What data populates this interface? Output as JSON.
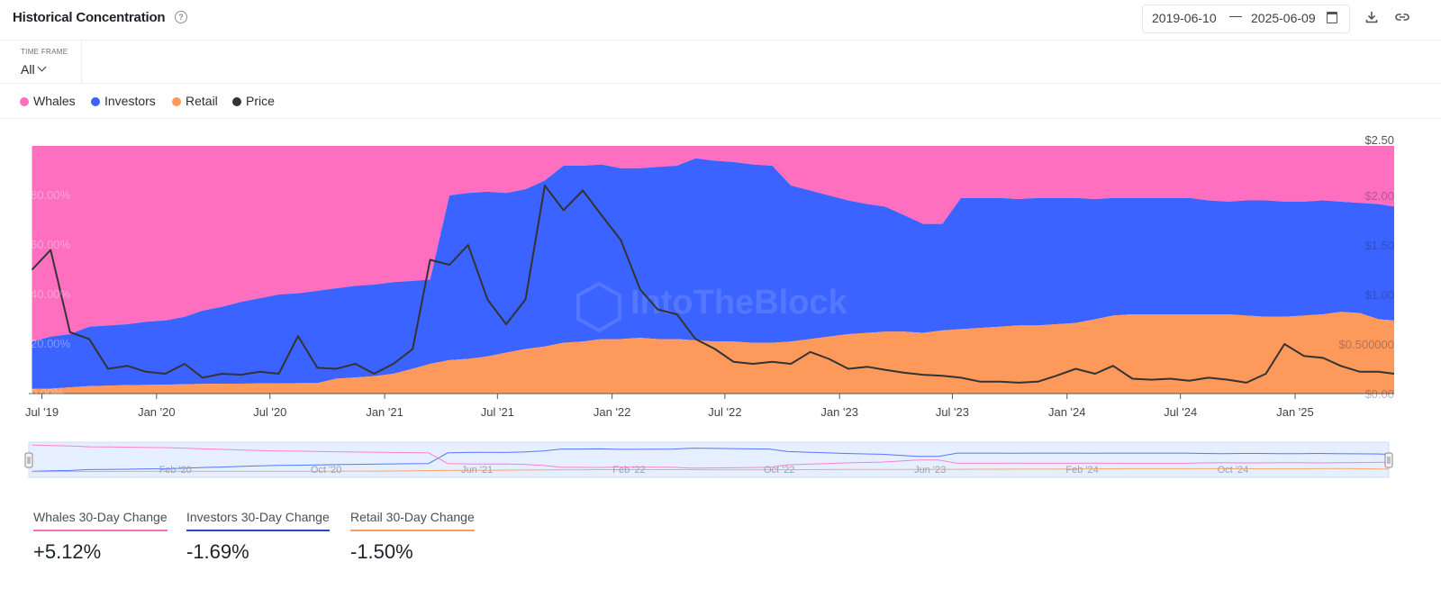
{
  "header": {
    "title": "Historical Concentration",
    "help_icon": "question-circle-icon",
    "date_start": "2019-06-10",
    "date_separator": "—",
    "date_end": "2025-06-09",
    "icons": [
      "calendar-icon",
      "download-icon",
      "link-icon"
    ]
  },
  "timeframe": {
    "label": "TIME FRAME",
    "value": "All"
  },
  "legend": [
    {
      "label": "Whales",
      "color": "#ff6fbf"
    },
    {
      "label": "Investors",
      "color": "#3b63ff"
    },
    {
      "label": "Retail",
      "color": "#fd9a5b"
    },
    {
      "label": "Price",
      "color": "#333333"
    }
  ],
  "chart_data": {
    "type": "area",
    "stacked": true,
    "watermark": "IntoTheBlock",
    "x_ticks": [
      "Jul '19",
      "Jan '20",
      "Jul '20",
      "Jan '21",
      "Jul '21",
      "Jan '22",
      "Jul '22",
      "Jan '23",
      "Jul '23",
      "Jan '24",
      "Jul '24",
      "Jan '25"
    ],
    "y_left_ticks": [
      "0.00%",
      "20.00%",
      "40.00%",
      "60.00%",
      "80.00%"
    ],
    "y_left_range": [
      0,
      100
    ],
    "y_right_ticks": [
      "$0.00",
      "$0.500000",
      "$1.00",
      "$1.50",
      "$2.00",
      "$2.50"
    ],
    "y_right_range": [
      0,
      2.5
    ],
    "x": [
      "2019-06",
      "2019-07",
      "2019-08",
      "2019-09",
      "2019-10",
      "2019-11",
      "2019-12",
      "2020-01",
      "2020-02",
      "2020-03",
      "2020-04",
      "2020-05",
      "2020-06",
      "2020-07",
      "2020-08",
      "2020-09",
      "2020-10",
      "2020-11",
      "2020-12",
      "2021-01",
      "2021-02",
      "2021-03",
      "2021-04",
      "2021-05",
      "2021-06",
      "2021-07",
      "2021-08",
      "2021-09",
      "2021-10",
      "2021-11",
      "2021-12",
      "2022-01",
      "2022-02",
      "2022-03",
      "2022-04",
      "2022-05",
      "2022-06",
      "2022-07",
      "2022-08",
      "2022-09",
      "2022-10",
      "2022-11",
      "2022-12",
      "2023-01",
      "2023-02",
      "2023-03",
      "2023-04",
      "2023-05",
      "2023-06",
      "2023-07",
      "2023-08",
      "2023-09",
      "2023-10",
      "2023-11",
      "2023-12",
      "2024-01",
      "2024-02",
      "2024-03",
      "2024-04",
      "2024-05",
      "2024-06",
      "2024-07",
      "2024-08",
      "2024-09",
      "2024-10",
      "2024-11",
      "2024-12",
      "2025-01",
      "2025-02",
      "2025-03",
      "2025-04",
      "2025-05",
      "2025-06"
    ],
    "series": [
      {
        "name": "Retail",
        "unit": "%",
        "color": "#fd9a5b",
        "values": [
          2,
          2,
          2.5,
          3,
          3.2,
          3.4,
          3.5,
          3.6,
          3.8,
          3.9,
          4,
          4,
          4.1,
          4.1,
          4.2,
          4.2,
          6,
          6.5,
          7,
          8,
          10,
          12,
          13.5,
          14,
          15,
          16.5,
          18,
          19,
          20.5,
          21,
          22,
          22,
          22.5,
          22,
          22,
          21.5,
          21,
          21,
          20.5,
          20.5,
          21,
          22,
          23,
          24,
          24.5,
          25,
          25,
          24.5,
          25.5,
          26,
          26.5,
          27,
          27.5,
          27.5,
          28,
          28.5,
          30,
          31.5,
          32,
          32,
          32,
          32,
          32,
          32,
          31.5,
          31,
          31,
          31.5,
          32,
          33,
          32.5,
          30,
          29.5
        ]
      },
      {
        "name": "Investors",
        "unit": "%",
        "color": "#3b63ff",
        "values": [
          21,
          23,
          24,
          27,
          27.5,
          28,
          29,
          29.5,
          31,
          33.5,
          35,
          37,
          38.5,
          40,
          40.5,
          41.5,
          42.5,
          43.5,
          44,
          45,
          45.5,
          46,
          80,
          81,
          81.5,
          81,
          82.5,
          86,
          92,
          92,
          92.5,
          91,
          91,
          91.5,
          92,
          95,
          94,
          93.5,
          92.5,
          92,
          84,
          82,
          80,
          78,
          76.5,
          75.5,
          72,
          68.5,
          68.5,
          79,
          79,
          79,
          78.5,
          79,
          79,
          79,
          78.5,
          79,
          79,
          79,
          79,
          79,
          78,
          77.5,
          78,
          78,
          77.5,
          77.5,
          78,
          77.5,
          77,
          76.5,
          75.5
        ]
      },
      {
        "name": "Whales",
        "unit": "%",
        "color": "#ff6fbf",
        "values": [
          100,
          100,
          100,
          100,
          100,
          100,
          100,
          100,
          100,
          100,
          100,
          100,
          100,
          100,
          100,
          100,
          100,
          100,
          100,
          100,
          100,
          100,
          100,
          100,
          100,
          100,
          100,
          100,
          100,
          100,
          100,
          100,
          100,
          100,
          100,
          100,
          100,
          100,
          100,
          100,
          100,
          100,
          100,
          100,
          100,
          100,
          100,
          100,
          100,
          100,
          100,
          100,
          100,
          100,
          100,
          100,
          100,
          100,
          100,
          100,
          100,
          100,
          100,
          100,
          100,
          100,
          100,
          100,
          100,
          100,
          100,
          100,
          100
        ]
      },
      {
        "name": "Price",
        "unit": "$",
        "axis": "right",
        "color": "#333333",
        "values": [
          1.25,
          1.45,
          0.62,
          0.55,
          0.25,
          0.28,
          0.22,
          0.2,
          0.3,
          0.16,
          0.2,
          0.19,
          0.22,
          0.2,
          0.58,
          0.26,
          0.25,
          0.3,
          0.2,
          0.3,
          0.45,
          1.35,
          1.3,
          1.5,
          0.95,
          0.7,
          0.95,
          2.1,
          1.85,
          2.05,
          1.8,
          1.55,
          1.05,
          0.85,
          0.8,
          0.55,
          0.45,
          0.32,
          0.3,
          0.32,
          0.3,
          0.42,
          0.35,
          0.25,
          0.27,
          0.24,
          0.21,
          0.19,
          0.18,
          0.16,
          0.12,
          0.12,
          0.11,
          0.12,
          0.18,
          0.25,
          0.2,
          0.28,
          0.15,
          0.14,
          0.15,
          0.13,
          0.16,
          0.14,
          0.11,
          0.2,
          0.5,
          0.38,
          0.36,
          0.28,
          0.22,
          0.22,
          0.2
        ]
      }
    ]
  },
  "navigator": {
    "labels": [
      "Feb '20",
      "Oct '20",
      "Jun '21",
      "Feb '22",
      "Oct '22",
      "Jun '23",
      "Feb '24",
      "Oct '24"
    ]
  },
  "kpis": [
    {
      "label": "Whales 30-Day Change",
      "value": "+5.12%",
      "color": "#ff6fbf"
    },
    {
      "label": "Investors 30-Day Change",
      "value": "-1.69%",
      "color": "#2a44c9"
    },
    {
      "label": "Retail 30-Day Change",
      "value": "-1.50%",
      "color": "#fd9a5b"
    }
  ]
}
